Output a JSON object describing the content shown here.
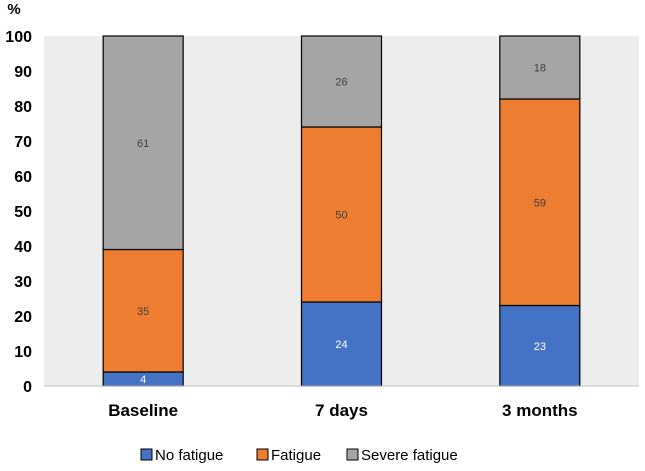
{
  "chart_data": {
    "type": "bar",
    "stacked": true,
    "title": "",
    "xlabel": "",
    "ylabel": "%",
    "ylim": [
      0,
      100
    ],
    "yticks": [
      0,
      10,
      20,
      30,
      40,
      50,
      60,
      70,
      80,
      90,
      100
    ],
    "grid": false,
    "categories": [
      "Baseline",
      "7 days",
      "3 months"
    ],
    "series": [
      {
        "name": "No fatigue",
        "color": "#4472C4",
        "label_color": "#ffffff",
        "values": [
          4,
          24,
          23
        ]
      },
      {
        "name": "Fatigue",
        "color": "#ED7D31",
        "label_color": "#404040",
        "values": [
          35,
          50,
          59
        ]
      },
      {
        "name": "Severe fatigue",
        "color": "#A5A5A5",
        "label_color": "#404040",
        "values": [
          61,
          26,
          18
        ]
      }
    ],
    "legend_position": "bottom",
    "plot_background": "#EDEDED"
  }
}
